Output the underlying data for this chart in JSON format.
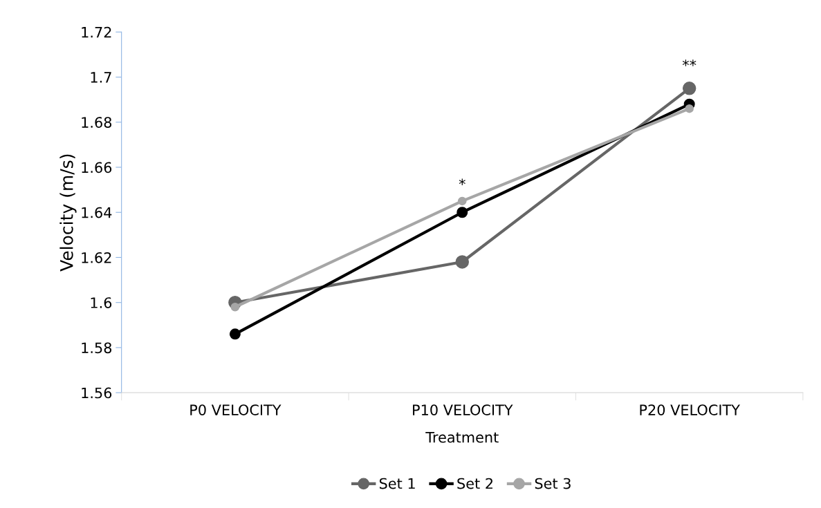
{
  "chart_data": {
    "type": "line",
    "xlabel": "Treatment",
    "ylabel": "Velocity (m/s)",
    "categories": [
      "P0 VELOCITY",
      "P10 VELOCITY",
      "P20 VELOCITY"
    ],
    "series": [
      {
        "name": "Set 1",
        "color": "#666666",
        "values": [
          1.6,
          1.618,
          1.695
        ]
      },
      {
        "name": "Set 2",
        "color": "#000000",
        "values": [
          1.586,
          1.64,
          1.688
        ]
      },
      {
        "name": "Set 3",
        "color": "#a6a6a6",
        "values": [
          1.598,
          1.645,
          1.686
        ]
      }
    ],
    "ylim": [
      1.56,
      1.72
    ],
    "yticks": [
      1.56,
      1.58,
      1.6,
      1.62,
      1.64,
      1.66,
      1.68,
      1.7,
      1.72
    ],
    "annotations": [
      "*",
      "**"
    ],
    "grid": false,
    "legend": "bottom",
    "marker": "circle",
    "line_style": "solid"
  }
}
